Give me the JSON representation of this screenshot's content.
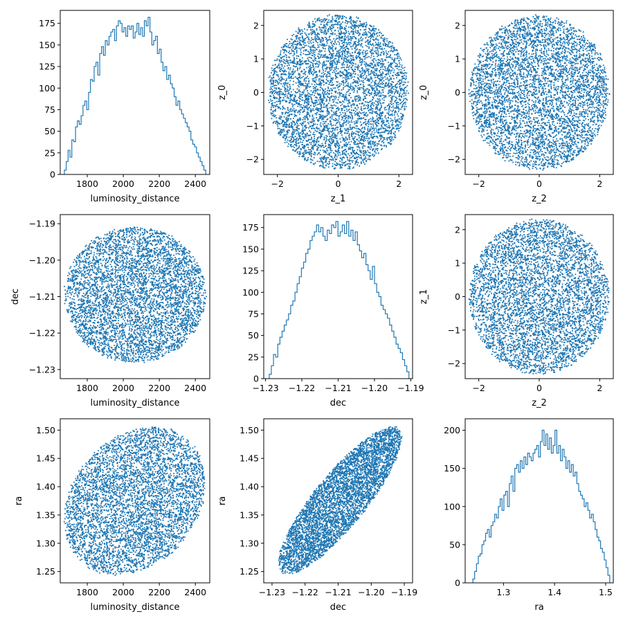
{
  "colors": {
    "series": "#1f77b4",
    "axis": "#000000",
    "background": "#ffffff"
  },
  "chart_data": [
    {
      "id": "p00",
      "type": "histogram",
      "xlabel": "luminosity_distance",
      "ylabel": "",
      "xlim": [
        1650,
        2480
      ],
      "ylim": [
        0,
        190
      ],
      "xticks": [
        1800,
        2000,
        2200,
        2400
      ],
      "xtick_labels": [
        "1800",
        "2000",
        "2200",
        "2400"
      ],
      "yticks": [
        0,
        25,
        50,
        75,
        100,
        125,
        150,
        175
      ],
      "ytick_labels": [
        "0",
        "25",
        "50",
        "75",
        "100",
        "125",
        "150",
        "175"
      ],
      "bins": {
        "start": 1673,
        "end": 2458
      },
      "counts": [
        5,
        15,
        28,
        20,
        40,
        38,
        55,
        62,
        58,
        68,
        80,
        85,
        75,
        95,
        110,
        108,
        125,
        130,
        115,
        140,
        148,
        138,
        155,
        150,
        160,
        165,
        168,
        155,
        172,
        178,
        175,
        165,
        170,
        160,
        172,
        168,
        172,
        158,
        165,
        175,
        162,
        170,
        160,
        178,
        172,
        182,
        165,
        150,
        155,
        160,
        140,
        145,
        130,
        120,
        125,
        110,
        115,
        105,
        100,
        90,
        80,
        85,
        75,
        70,
        65,
        60,
        55,
        50,
        40,
        35,
        32,
        25,
        20,
        15,
        10,
        5
      ]
    },
    {
      "id": "p01",
      "type": "scatter",
      "xlabel": "z_1",
      "ylabel": "z_0",
      "xlim": [
        -2.45,
        2.45
      ],
      "ylim": [
        -2.45,
        2.45
      ],
      "xticks": [
        -2,
        0,
        2
      ],
      "xtick_labels": [
        "−2",
        "0",
        "2"
      ],
      "yticks": [
        -2,
        -1,
        0,
        1,
        2
      ],
      "ytick_labels": [
        "−2",
        "−1",
        "0",
        "1",
        "2"
      ],
      "distribution": {
        "kind": "disk",
        "center": [
          0,
          0
        ],
        "radii": [
          2.3,
          2.3
        ],
        "corr": 0,
        "n": 5000
      }
    },
    {
      "id": "p02",
      "type": "scatter",
      "xlabel": "z_2",
      "ylabel": "z_0",
      "xlim": [
        -2.45,
        2.45
      ],
      "ylim": [
        -2.45,
        2.45
      ],
      "xticks": [
        -2,
        0,
        2
      ],
      "xtick_labels": [
        "−2",
        "0",
        "2"
      ],
      "yticks": [
        -2,
        -1,
        0,
        1,
        2
      ],
      "ytick_labels": [
        "−2",
        "−1",
        "0",
        "1",
        "2"
      ],
      "distribution": {
        "kind": "disk",
        "center": [
          0,
          0
        ],
        "radii": [
          2.3,
          2.3
        ],
        "corr": 0,
        "n": 5000
      }
    },
    {
      "id": "p10",
      "type": "scatter",
      "xlabel": "luminosity_distance",
      "ylabel": "dec",
      "xlim": [
        1650,
        2480
      ],
      "ylim": [
        -1.2325,
        -1.1875
      ],
      "xticks": [
        1800,
        2000,
        2200,
        2400
      ],
      "xtick_labels": [
        "1800",
        "2000",
        "2200",
        "2400"
      ],
      "yticks": [
        -1.23,
        -1.22,
        -1.21,
        -1.2,
        -1.19
      ],
      "ytick_labels": [
        "−1.23",
        "−1.22",
        "−1.21",
        "−1.20",
        "−1.19"
      ],
      "distribution": {
        "kind": "disk",
        "center": [
          2065,
          -1.2095
        ],
        "radii": [
          390,
          0.0185
        ],
        "corr": 0,
        "n": 5000
      }
    },
    {
      "id": "p11",
      "type": "histogram",
      "xlabel": "dec",
      "ylabel": "",
      "xlim": [
        -1.2305,
        -1.1895
      ],
      "ylim": [
        0,
        190
      ],
      "xticks": [
        -1.23,
        -1.22,
        -1.21,
        -1.2,
        -1.19
      ],
      "xtick_labels": [
        "−1.23",
        "−1.22",
        "−1.21",
        "−1.20",
        "−1.19"
      ],
      "yticks": [
        0,
        25,
        50,
        75,
        100,
        125,
        150,
        175
      ],
      "ytick_labels": [
        "0",
        "25",
        "50",
        "75",
        "100",
        "125",
        "150",
        "175"
      ],
      "bins": {
        "start": -1.229,
        "end": -1.1905
      },
      "counts": [
        5,
        15,
        28,
        25,
        40,
        48,
        55,
        62,
        68,
        75,
        85,
        90,
        100,
        110,
        118,
        128,
        135,
        145,
        150,
        160,
        165,
        170,
        178,
        170,
        175,
        165,
        160,
        172,
        168,
        178,
        175,
        182,
        165,
        170,
        178,
        168,
        182,
        165,
        172,
        160,
        170,
        155,
        148,
        140,
        145,
        132,
        125,
        115,
        130,
        110,
        100,
        95,
        85,
        80,
        75,
        70,
        62,
        55,
        48,
        40,
        35,
        30,
        22,
        15,
        8
      ]
    },
    {
      "id": "p12",
      "type": "scatter",
      "xlabel": "z_2",
      "ylabel": "z_1",
      "xlim": [
        -2.45,
        2.45
      ],
      "ylim": [
        -2.45,
        2.45
      ],
      "xticks": [
        -2,
        0,
        2
      ],
      "xtick_labels": [
        "−2",
        "0",
        "2"
      ],
      "yticks": [
        -2,
        -1,
        0,
        1,
        2
      ],
      "ytick_labels": [
        "−2",
        "−1",
        "0",
        "1",
        "2"
      ],
      "distribution": {
        "kind": "disk",
        "center": [
          0,
          0
        ],
        "radii": [
          2.3,
          2.3
        ],
        "corr": 0,
        "n": 5000
      }
    },
    {
      "id": "p20",
      "type": "scatter",
      "xlabel": "luminosity_distance",
      "ylabel": "ra",
      "xlim": [
        1650,
        2480
      ],
      "ylim": [
        1.23,
        1.52
      ],
      "xticks": [
        1800,
        2000,
        2200,
        2400
      ],
      "xtick_labels": [
        "1800",
        "2000",
        "2200",
        "2400"
      ],
      "yticks": [
        1.25,
        1.3,
        1.35,
        1.4,
        1.45,
        1.5
      ],
      "ytick_labels": [
        "1.25",
        "1.30",
        "1.35",
        "1.40",
        "1.45",
        "1.50"
      ],
      "distribution": {
        "kind": "ellipse",
        "center": [
          2065,
          1.375
        ],
        "radii": [
          390,
          0.13
        ],
        "corr": 0.25,
        "n": 5000
      }
    },
    {
      "id": "p21",
      "type": "scatter",
      "xlabel": "dec",
      "ylabel": "ra",
      "xlim": [
        -1.2325,
        -1.1875
      ],
      "ylim": [
        1.23,
        1.52
      ],
      "xticks": [
        -1.23,
        -1.22,
        -1.21,
        -1.2,
        -1.19
      ],
      "xtick_labels": [
        "−1.23",
        "−1.22",
        "−1.21",
        "−1.20",
        "−1.19"
      ],
      "yticks": [
        1.25,
        1.3,
        1.35,
        1.4,
        1.45,
        1.5
      ],
      "ytick_labels": [
        "1.25",
        "1.30",
        "1.35",
        "1.40",
        "1.45",
        "1.50"
      ],
      "distribution": {
        "kind": "ellipse",
        "center": [
          -1.2095,
          1.375
        ],
        "radii": [
          0.0185,
          0.13
        ],
        "corr": 0.85,
        "n": 5000
      }
    },
    {
      "id": "p22",
      "type": "histogram",
      "xlabel": "ra",
      "ylabel": "",
      "xlim": [
        1.225,
        1.515
      ],
      "ylim": [
        0,
        215
      ],
      "xticks": [
        1.3,
        1.4,
        1.5
      ],
      "xtick_labels": [
        "1.3",
        "1.4",
        "1.5"
      ],
      "yticks": [
        0,
        50,
        100,
        150,
        200
      ],
      "ytick_labels": [
        "0",
        "50",
        "100",
        "150",
        "200"
      ],
      "bins": {
        "start": 1.24,
        "end": 1.508
      },
      "counts": [
        5,
        15,
        25,
        35,
        38,
        50,
        55,
        65,
        70,
        60,
        75,
        80,
        90,
        85,
        100,
        110,
        95,
        115,
        120,
        100,
        130,
        140,
        120,
        150,
        155,
        145,
        160,
        150,
        165,
        155,
        170,
        165,
        160,
        170,
        175,
        180,
        165,
        185,
        200,
        180,
        195,
        175,
        190,
        170,
        180,
        200,
        170,
        180,
        160,
        175,
        165,
        150,
        160,
        145,
        155,
        140,
        145,
        130,
        120,
        115,
        110,
        100,
        105,
        95,
        85,
        90,
        80,
        70,
        60,
        55,
        45,
        40,
        30,
        20,
        10
      ]
    }
  ]
}
